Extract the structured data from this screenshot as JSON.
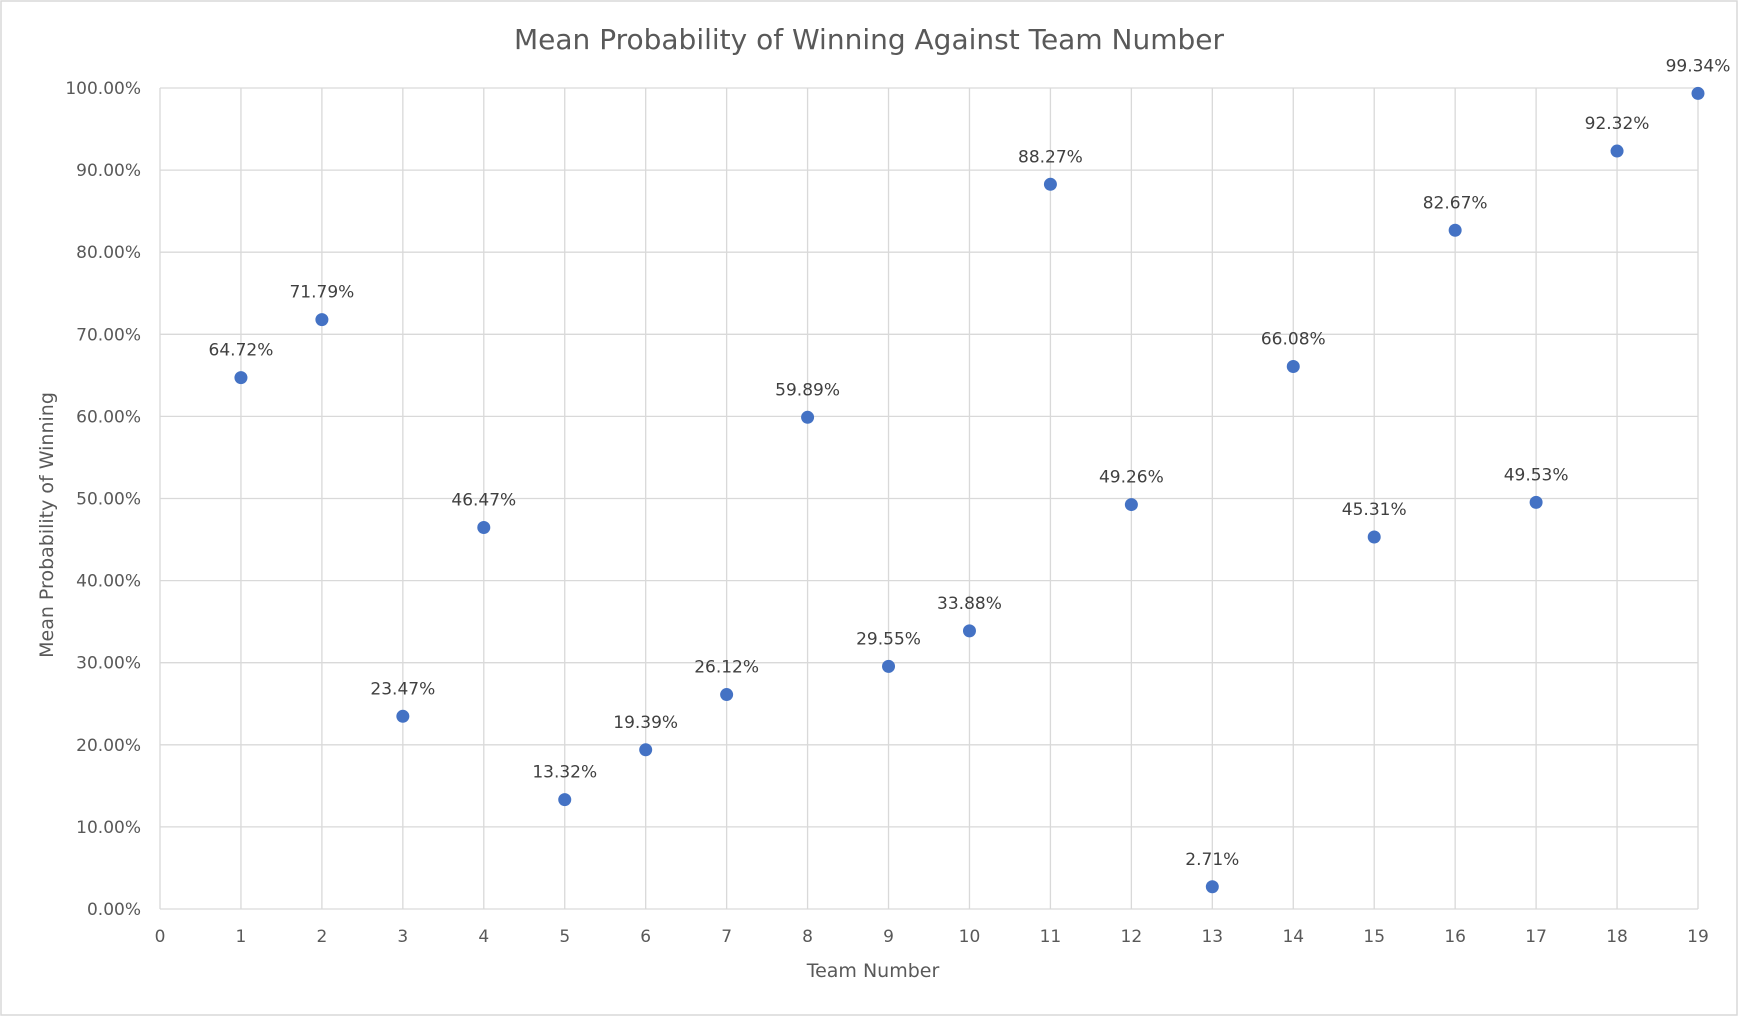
{
  "chart_data": {
    "type": "scatter",
    "title": "Mean Probability of Winning Against Team Number",
    "xlabel": "Team Number",
    "ylabel": "Mean Probability of Winning",
    "xlim": [
      0,
      19
    ],
    "ylim": [
      0,
      1
    ],
    "x_ticks": [
      "0",
      "1",
      "2",
      "3",
      "4",
      "5",
      "6",
      "7",
      "8",
      "9",
      "10",
      "11",
      "12",
      "13",
      "14",
      "15",
      "16",
      "17",
      "18",
      "19"
    ],
    "y_ticks": [
      "0.00%",
      "10.00%",
      "20.00%",
      "30.00%",
      "40.00%",
      "50.00%",
      "60.00%",
      "70.00%",
      "80.00%",
      "90.00%",
      "100.00%"
    ],
    "grid": true,
    "legend": "none",
    "colors": {
      "point": "#4472c4",
      "grid": "#d9d9d9",
      "text": "#595959"
    },
    "x": [
      1,
      2,
      3,
      4,
      5,
      6,
      7,
      8,
      9,
      10,
      11,
      12,
      13,
      14,
      15,
      16,
      17,
      18,
      19
    ],
    "y": [
      0.6472,
      0.7179,
      0.2347,
      0.4647,
      0.1332,
      0.1939,
      0.2612,
      0.5989,
      0.2955,
      0.3388,
      0.8827,
      0.4926,
      0.0271,
      0.6608,
      0.4531,
      0.8267,
      0.4953,
      0.9232,
      0.9934
    ],
    "labels": [
      "64.72%",
      "71.79%",
      "23.47%",
      "46.47%",
      "13.32%",
      "19.39%",
      "26.12%",
      "59.89%",
      "29.55%",
      "33.88%",
      "88.27%",
      "49.26%",
      "2.71%",
      "66.08%",
      "45.31%",
      "82.67%",
      "49.53%",
      "92.32%",
      "99.34%"
    ]
  }
}
